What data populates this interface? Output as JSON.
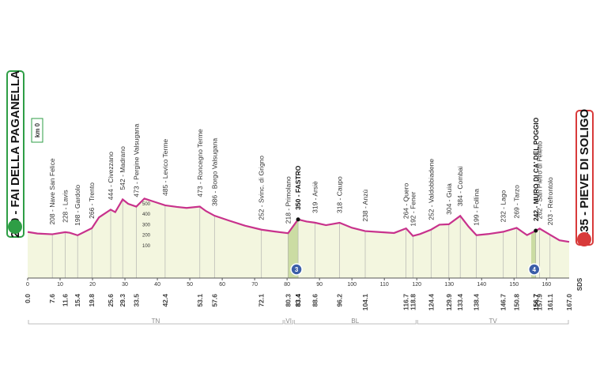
{
  "chart_data": {
    "type": "area",
    "start_label": "230 - FAI DELLA PAGANELLA",
    "finish_label": "135 - PIEVE DI SOLIGO",
    "km_zero": "km 0",
    "sds": "SDS",
    "color": "#c8328c",
    "fill": "#f3f6df",
    "x": [
      0,
      3,
      7.6,
      11.6,
      13,
      15.4,
      19.8,
      22,
      25.6,
      27,
      29.3,
      31,
      33.5,
      36,
      39,
      42.4,
      46,
      49,
      53.1,
      55,
      57.6,
      62,
      67,
      72.1,
      76,
      80.3,
      83.4,
      86,
      88.6,
      92,
      96.2,
      100,
      104.1,
      108,
      113,
      116.7,
      118.8,
      121,
      124.4,
      127,
      129.9,
      133.4,
      136,
      138.4,
      142,
      146.7,
      150.8,
      154,
      156.7,
      157.9,
      161.1,
      164,
      167
    ],
    "values": [
      230,
      215,
      208,
      228,
      222,
      198,
      266,
      370,
      444,
      420,
      542,
      500,
      473,
      550,
      520,
      485,
      470,
      460,
      473,
      430,
      386,
      340,
      290,
      252,
      235,
      218,
      350,
      330,
      319,
      295,
      318,
      270,
      238,
      230,
      220,
      264,
      192,
      210,
      252,
      300,
      304,
      384,
      280,
      199,
      210,
      232,
      269,
      200,
      242,
      262,
      203,
      150,
      135
    ],
    "xlim": [
      0,
      167
    ],
    "ylim": [
      0,
      500
    ],
    "yticks": [
      100,
      200,
      300,
      400,
      500
    ],
    "xticks": [
      0,
      10,
      20,
      30,
      40,
      50,
      60,
      70,
      80,
      90,
      100,
      110,
      120,
      130,
      140,
      150,
      160
    ],
    "waypoints": [
      {
        "label": "208 - Nave San Felice",
        "km": 7.6,
        "altitude": 208
      },
      {
        "label": "228 - Lavis",
        "km": 11.6,
        "altitude": 228
      },
      {
        "label": "198 - Gardolo",
        "km": 15.4,
        "altitude": 198
      },
      {
        "label": "266 - Trento",
        "km": 19.8,
        "altitude": 266
      },
      {
        "label": "444 - Civezzano",
        "km": 25.6,
        "altitude": 444
      },
      {
        "label": "542 - Madrano",
        "km": 29.3,
        "altitude": 542
      },
      {
        "label": "473 - Pergine Valsugana",
        "km": 33.5,
        "altitude": 473
      },
      {
        "label": "485 - Levico Terme",
        "km": 42.4,
        "altitude": 485
      },
      {
        "label": "473 - Roncegno Terme",
        "km": 53.1,
        "altitude": 473
      },
      {
        "label": "386 - Borgo Valsugana",
        "km": 57.6,
        "altitude": 386
      },
      {
        "label": "252 - Svinc. di Grigno",
        "km": 72.1,
        "altitude": 252
      },
      {
        "label": "218 - Primolano",
        "km": 80.3,
        "altitude": 218
      },
      {
        "label": "350 - FASTRO",
        "km": 83.4,
        "altitude": 350,
        "bold": true
      },
      {
        "label": "319 - Arsiè",
        "km": 88.6,
        "altitude": 319
      },
      {
        "label": "318 - Caupo",
        "km": 96.2,
        "altitude": 318
      },
      {
        "label": "238 - Anzù",
        "km": 104.1,
        "altitude": 238
      },
      {
        "label": "264 - Quero",
        "km": 116.7,
        "altitude": 264
      },
      {
        "label": "192 - Fener",
        "km": 118.8,
        "altitude": 192
      },
      {
        "label": "252 - Valdobbiadene",
        "km": 124.4,
        "altitude": 252
      },
      {
        "label": "304 - Guia",
        "km": 129.9,
        "altitude": 304
      },
      {
        "label": "384 - Combai",
        "km": 133.4,
        "altitude": 384
      },
      {
        "label": "199 - Follina",
        "km": 138.4,
        "altitude": 199
      },
      {
        "label": "232 - Lago",
        "km": 146.7,
        "altitude": 232
      },
      {
        "label": "269 - Tarzo",
        "km": 150.8,
        "altitude": 269
      },
      {
        "label": "242 - MURO DI CA' DEL POGGIO",
        "km": 156.7,
        "altitude": 242,
        "bold": true
      },
      {
        "label": "262 - San Pietro di Feletto",
        "km": 157.9,
        "altitude": 262
      },
      {
        "label": "203 - Refrontolo",
        "km": 161.1,
        "altitude": 203
      }
    ],
    "km_marks": [
      {
        "value": 0,
        "label": "0.0"
      },
      7.6,
      11.6,
      15.4,
      19.8,
      25.6,
      29.3,
      33.5,
      42.4,
      53.1,
      57.6,
      72.1,
      80.3,
      83.4,
      88.6,
      96.2,
      104.1,
      116.7,
      118.8,
      124.4,
      129.9,
      133.4,
      138.4,
      146.7,
      150.8,
      156.7,
      157.9,
      161.1,
      {
        "value": 167,
        "label": "167.0"
      }
    ],
    "climbs": [
      {
        "label": "3",
        "from": 80.3,
        "to": 83.4
      },
      {
        "label": "4",
        "from": 155.3,
        "to": 156.7
      }
    ],
    "regions": [
      {
        "label": "TN",
        "from": 0,
        "to": 79
      },
      {
        "label": "VI",
        "from": 79,
        "to": 82
      },
      {
        "label": "BL",
        "from": 82,
        "to": 120
      },
      {
        "label": "TV",
        "from": 120,
        "to": 167
      }
    ]
  }
}
